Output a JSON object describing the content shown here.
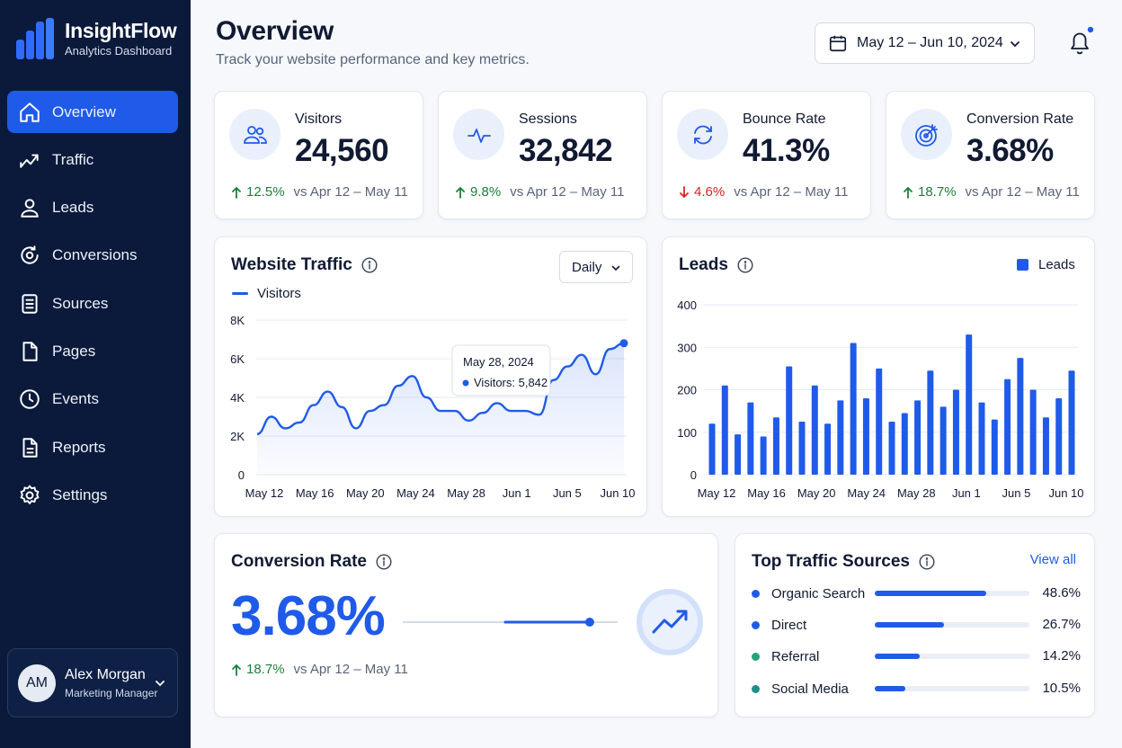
{
  "brand": {
    "name": "InsightFlow",
    "subtitle": "Analytics Dashboard"
  },
  "nav": {
    "items": [
      {
        "label": "Overview",
        "icon": "home-icon",
        "active": true
      },
      {
        "label": "Traffic",
        "icon": "trend-icon"
      },
      {
        "label": "Leads",
        "icon": "user-icon"
      },
      {
        "label": "Conversions",
        "icon": "refresh-icon"
      },
      {
        "label": "Sources",
        "icon": "list-icon"
      },
      {
        "label": "Pages",
        "icon": "page-icon"
      },
      {
        "label": "Events",
        "icon": "clock-icon"
      },
      {
        "label": "Reports",
        "icon": "report-icon"
      },
      {
        "label": "Settings",
        "icon": "gear-icon"
      }
    ]
  },
  "user": {
    "initials": "AM",
    "name": "Alex Morgan",
    "role": "Marketing Manager"
  },
  "header": {
    "title": "Overview",
    "subtitle": "Track your website performance and key metrics.",
    "date_range": "May 12 – Jun 10, 2024"
  },
  "kpis": [
    {
      "label": "Visitors",
      "value": "24,560",
      "delta": "12.5%",
      "direction": "up",
      "compare": "vs Apr 12 – May 11",
      "icon": "users-icon"
    },
    {
      "label": "Sessions",
      "value": "32,842",
      "delta": "9.8%",
      "direction": "up",
      "compare": "vs Apr 12 – May 11",
      "icon": "pulse-icon"
    },
    {
      "label": "Bounce Rate",
      "value": "41.3%",
      "delta": "4.6%",
      "direction": "down",
      "compare": "vs Apr 12 – May 11",
      "icon": "refresh-icon"
    },
    {
      "label": "Conversion Rate",
      "value": "3.68%",
      "delta": "18.7%",
      "direction": "up",
      "compare": "vs Apr 12 – May 11",
      "icon": "target-icon"
    }
  ],
  "traffic": {
    "title": "Website Traffic",
    "period": "Daily",
    "tooltip": {
      "date": "May 28, 2024",
      "label": "Visitors: 5,842"
    }
  },
  "leads": {
    "title": "Leads"
  },
  "conversion": {
    "title": "Conversion Rate",
    "value": "3.68%",
    "delta": "18.7%",
    "compare": "vs Apr 12 – May 11",
    "level": 0.87
  },
  "sources": {
    "title": "Top Traffic Sources",
    "view_all": "View all",
    "items": [
      {
        "name": "Organic Search",
        "pct": "48.6%",
        "value": 48.6,
        "color": "#1f5be8"
      },
      {
        "name": "Direct",
        "pct": "26.7%",
        "value": 26.7,
        "color": "#1f5be8"
      },
      {
        "name": "Referral",
        "pct": "14.2%",
        "value": 14.2,
        "color": "#25a37a"
      },
      {
        "name": "Social Media",
        "pct": "10.5%",
        "value": 10.5,
        "color": "#1d8f86"
      }
    ]
  },
  "chart_data": [
    {
      "type": "area",
      "title": "Website Traffic",
      "legend": [
        "Visitors"
      ],
      "x_ticks": [
        "May 12",
        "May 16",
        "May 20",
        "May 24",
        "May 28",
        "Jun 1",
        "Jun 5",
        "Jun 10"
      ],
      "y_ticks": [
        "0",
        "2K",
        "4K",
        "6K",
        "8K"
      ],
      "ylim": [
        0,
        8000
      ],
      "series": [
        {
          "name": "Visitors",
          "values": [
            2100,
            3000,
            2400,
            2700,
            3600,
            4300,
            3500,
            2400,
            3300,
            3600,
            4600,
            5100,
            4000,
            3300,
            3300,
            2800,
            3200,
            3700,
            3300,
            3300,
            3100,
            4900,
            5600,
            6200,
            5200,
            6500,
            6800
          ]
        }
      ],
      "annotation": {
        "x": "May 28",
        "text": "May 28, 2024 · Visitors: 5,842"
      }
    },
    {
      "type": "bar",
      "title": "Leads",
      "legend": [
        "Leads"
      ],
      "x_ticks": [
        "May 12",
        "May 16",
        "May 20",
        "May 24",
        "May 28",
        "Jun 1",
        "Jun 5",
        "Jun 10"
      ],
      "y_ticks": [
        "0",
        "100",
        "200",
        "300",
        "400"
      ],
      "ylim": [
        0,
        400
      ],
      "series": [
        {
          "name": "Leads",
          "values": [
            120,
            210,
            95,
            170,
            90,
            135,
            255,
            125,
            210,
            120,
            175,
            310,
            180,
            250,
            125,
            145,
            175,
            245,
            160,
            200,
            330,
            170,
            130,
            225,
            275,
            200,
            135,
            180,
            245
          ]
        }
      ]
    }
  ]
}
